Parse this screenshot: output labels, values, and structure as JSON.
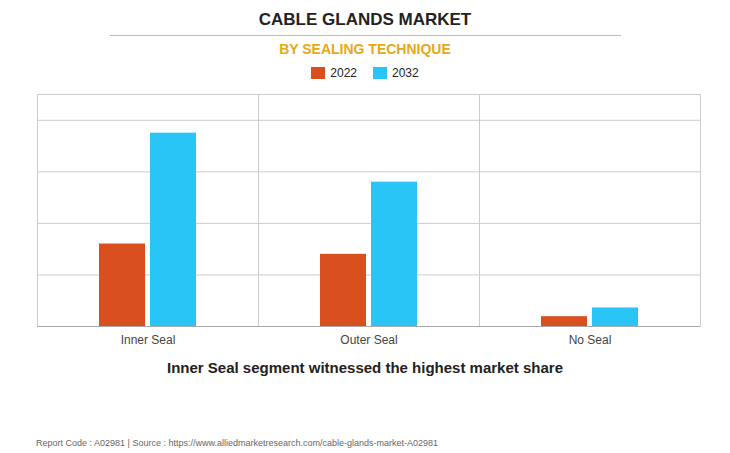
{
  "chart_data": {
    "type": "bar",
    "title": "CABLE GLANDS MARKET",
    "subtitle": "BY SEALING TECHNIQUE",
    "caption": "Inner Seal segment witnessed the highest market share",
    "footer": "Report Code : A02981  |  Source : https://www.alliedmarketresearch.com/cable-glands-market-A02981",
    "categories": [
      "Inner Seal",
      "Outer Seal",
      "No Seal"
    ],
    "series": [
      {
        "name": "2022",
        "color": "#d94f1e",
        "values": [
          3.2,
          2.8,
          0.38
        ]
      },
      {
        "name": "2032",
        "color": "#29c5f6",
        "values": [
          7.5,
          5.6,
          0.72
        ]
      }
    ],
    "ylim": [
      0,
      9
    ],
    "yticks": [
      0,
      2,
      4,
      6,
      8
    ],
    "grid": true,
    "legend": "top",
    "tick_labels": "x"
  }
}
